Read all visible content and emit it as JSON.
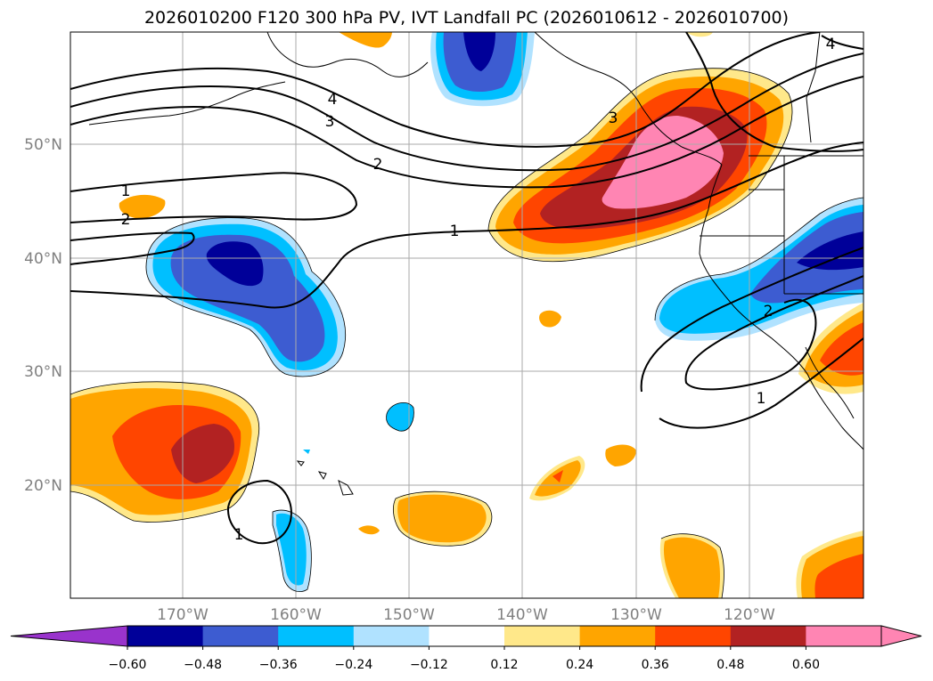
{
  "title": "2026010200 F120 300 hPa PV, IVT Landfall PC (2026010612 - 2026010700)",
  "lat_labels": [
    "50°N",
    "40°N",
    "30°N",
    "20°N"
  ],
  "lon_labels": [
    "170°W",
    "160°W",
    "150°W",
    "140°W",
    "130°W",
    "120°W"
  ],
  "colorbar": {
    "ticks": [
      "−0.60",
      "−0.48",
      "−0.36",
      "−0.24",
      "−0.12",
      "0.12",
      "0.24",
      "0.36",
      "0.48",
      "0.60"
    ],
    "colors": [
      "#9933cc",
      "#000099",
      "#3d5cd1",
      "#00bfff",
      "#b0e2ff",
      "#ffffff",
      "#ffe88a",
      "#ffa500",
      "#ff4500",
      "#b22222",
      "#ff85b3"
    ]
  },
  "contour_labels": [
    {
      "text": "4"
    },
    {
      "text": "3"
    },
    {
      "text": "2"
    },
    {
      "text": "1"
    },
    {
      "text": "2"
    },
    {
      "text": "1"
    },
    {
      "text": "2"
    },
    {
      "text": "1"
    },
    {
      "text": "1"
    },
    {
      "text": "4"
    },
    {
      "text": "3"
    }
  ]
}
